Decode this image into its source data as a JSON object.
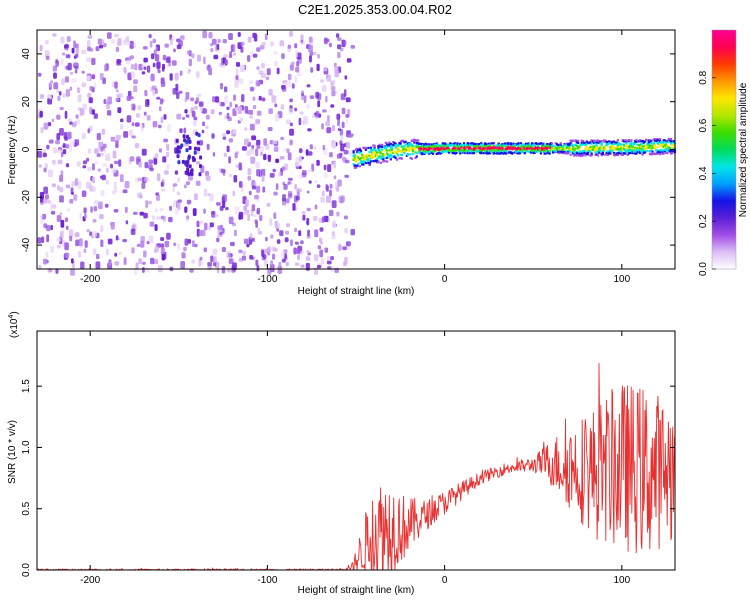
{
  "title": "C2E1.2025.353.00.04.R02",
  "chart_data": [
    {
      "type": "heatmap",
      "xlabel": "Height of straight line (km)",
      "ylabel": "Frequency (Hz)",
      "xlim": [
        -230,
        130
      ],
      "ylim": [
        -50,
        50
      ],
      "x_ticks": [
        -200,
        -100,
        0,
        100
      ],
      "y_ticks": [
        -40,
        -20,
        0,
        20,
        40
      ],
      "noise_region_x": [
        -230,
        -52
      ],
      "signal_region_x": [
        -52,
        130
      ],
      "signal_frequency_hz": [
        {
          "x": -52,
          "f": -4
        },
        {
          "x": -40,
          "f": -2
        },
        {
          "x": -25,
          "f": 0
        },
        {
          "x": 0,
          "f": 0.5
        },
        {
          "x": 60,
          "f": 0.5
        },
        {
          "x": 100,
          "f": 0.8
        },
        {
          "x": 130,
          "f": 1.5
        }
      ],
      "colorbar": {
        "label": "Normalized spectral amplitude",
        "range": [
          0,
          1
        ],
        "ticks": [
          "0.0",
          "0.2",
          "0.4",
          "0.6",
          "0.8"
        ],
        "colors": [
          "#ffffff",
          "#ddbdf5",
          "#a14de6",
          "#5a1fd6",
          "#1414e6",
          "#00a0ff",
          "#00e6e6",
          "#00dc5a",
          "#3cdc00",
          "#b4e600",
          "#ffe600",
          "#ff9600",
          "#ff3c00",
          "#ff0050",
          "#ff0096"
        ]
      }
    },
    {
      "type": "line",
      "xlabel": "Height of straight line (km)",
      "ylabel": "SNR (10 * v/v)",
      "y_multiplier": "(x10",
      "y_multiplier_exp": "4",
      "y_multiplier_close": ")",
      "xlim": [
        -230,
        130
      ],
      "ylim": [
        0,
        1.95
      ],
      "x_ticks": [
        -200,
        -100,
        0,
        100
      ],
      "y_ticks": [
        "0.0",
        "0.5",
        "1.0",
        "1.5"
      ],
      "line_color": "#e83030",
      "envelope": [
        {
          "x": -230,
          "mean": 0.0,
          "amp": 0.008
        },
        {
          "x": -60,
          "mean": 0.0,
          "amp": 0.01
        },
        {
          "x": -52,
          "mean": 0.03,
          "amp": 0.03
        },
        {
          "x": -45,
          "mean": 0.2,
          "amp": 0.25
        },
        {
          "x": -40,
          "mean": 0.3,
          "amp": 0.45
        },
        {
          "x": -30,
          "mean": 0.35,
          "amp": 0.42
        },
        {
          "x": -22,
          "mean": 0.35,
          "amp": 0.25
        },
        {
          "x": -10,
          "mean": 0.45,
          "amp": 0.12
        },
        {
          "x": 0,
          "mean": 0.55,
          "amp": 0.1
        },
        {
          "x": 20,
          "mean": 0.75,
          "amp": 0.05
        },
        {
          "x": 35,
          "mean": 0.83,
          "amp": 0.05
        },
        {
          "x": 50,
          "mean": 0.86,
          "amp": 0.06
        },
        {
          "x": 58,
          "mean": 0.88,
          "amp": 0.16
        },
        {
          "x": 70,
          "mean": 0.85,
          "amp": 0.35
        },
        {
          "x": 85,
          "mean": 0.8,
          "amp": 0.55
        },
        {
          "x": 100,
          "mean": 0.85,
          "amp": 0.7
        },
        {
          "x": 115,
          "mean": 0.8,
          "amp": 0.7
        },
        {
          "x": 130,
          "mean": 0.82,
          "amp": 0.55
        }
      ]
    }
  ]
}
